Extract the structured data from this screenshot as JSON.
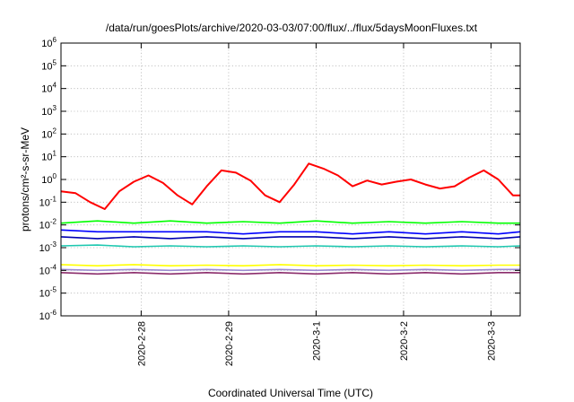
{
  "chart_data": {
    "type": "line",
    "title": "/data/run/goesPlots/archive/2020-03-03/07:00/flux/../flux/5daysMoonFluxes.txt",
    "xlabel": "Coordinated Universal Time (UTC)",
    "ylabel": "protons/cm²-s-sr-MeV",
    "y_scale": "log",
    "ylim": [
      1e-06,
      1000000.0
    ],
    "y_ticks": [
      {
        "value": 1e-06,
        "base": "10",
        "exp": "-6"
      },
      {
        "value": 1e-05,
        "base": "10",
        "exp": "-5"
      },
      {
        "value": 0.0001,
        "base": "10",
        "exp": "-4"
      },
      {
        "value": 0.001,
        "base": "10",
        "exp": "-3"
      },
      {
        "value": 0.01,
        "base": "10",
        "exp": "-2"
      },
      {
        "value": 0.1,
        "base": "10",
        "exp": "-1"
      },
      {
        "value": 1,
        "base": "10",
        "exp": "0"
      },
      {
        "value": 10,
        "base": "10",
        "exp": "1"
      },
      {
        "value": 100,
        "base": "10",
        "exp": "2"
      },
      {
        "value": 1000,
        "base": "10",
        "exp": "3"
      },
      {
        "value": 10000,
        "base": "10",
        "exp": "4"
      },
      {
        "value": 100000,
        "base": "10",
        "exp": "5"
      },
      {
        "value": 1000000,
        "base": "10",
        "exp": "6"
      }
    ],
    "xlim": [
      "2020-02-27 02:00",
      "2020-03-03 08:00"
    ],
    "x_ticks": [
      "2020-2-28",
      "2020-2-29",
      "2020-3-1",
      "2020-3-2",
      "2020-3-3"
    ],
    "x_tick_dates": [
      "2020-02-28",
      "2020-02-29",
      "2020-03-01",
      "2020-03-02",
      "2020-03-03"
    ],
    "grid": true,
    "legend": "none",
    "series": [
      {
        "color": "#ff0000",
        "x": [
          "2020-02-27 02:00",
          "2020-02-27 06:00",
          "2020-02-27 10:00",
          "2020-02-27 14:00",
          "2020-02-27 18:00",
          "2020-02-27 22:00",
          "2020-02-28 02:00",
          "2020-02-28 06:00",
          "2020-02-28 10:00",
          "2020-02-28 14:00",
          "2020-02-28 18:00",
          "2020-02-28 22:00",
          "2020-02-29 02:00",
          "2020-02-29 06:00",
          "2020-02-29 10:00",
          "2020-02-29 14:00",
          "2020-02-29 18:00",
          "2020-02-29 22:00",
          "2020-03-01 02:00",
          "2020-03-01 06:00",
          "2020-03-01 10:00",
          "2020-03-01 14:00",
          "2020-03-01 18:00",
          "2020-03-01 22:00",
          "2020-03-02 02:00",
          "2020-03-02 06:00",
          "2020-03-02 10:00",
          "2020-03-02 14:00",
          "2020-03-02 18:00",
          "2020-03-02 22:00",
          "2020-03-03 02:00",
          "2020-03-03 06:00",
          "2020-03-03 08:00"
        ],
        "values": [
          0.3,
          0.25,
          0.1,
          0.05,
          0.3,
          0.8,
          1.5,
          0.7,
          0.2,
          0.08,
          0.5,
          2.5,
          2.0,
          0.9,
          0.2,
          0.1,
          0.6,
          5.0,
          3.0,
          1.5,
          0.5,
          0.9,
          0.6,
          0.8,
          1.0,
          0.6,
          0.4,
          0.5,
          1.2,
          2.5,
          1.0,
          0.2,
          0.2
        ]
      },
      {
        "color": "#00ff00",
        "x": [
          "2020-02-27 02:00",
          "2020-02-27 12:00",
          "2020-02-27 22:00",
          "2020-02-28 08:00",
          "2020-02-28 18:00",
          "2020-02-29 04:00",
          "2020-02-29 14:00",
          "2020-03-01 00:00",
          "2020-03-01 10:00",
          "2020-03-01 20:00",
          "2020-03-02 06:00",
          "2020-03-02 16:00",
          "2020-03-03 02:00",
          "2020-03-03 08:00"
        ],
        "values": [
          0.012,
          0.015,
          0.012,
          0.015,
          0.012,
          0.014,
          0.012,
          0.015,
          0.012,
          0.014,
          0.012,
          0.014,
          0.012,
          0.012
        ]
      },
      {
        "color": "#0000ff",
        "x": [
          "2020-02-27 02:00",
          "2020-02-27 12:00",
          "2020-02-27 22:00",
          "2020-02-28 08:00",
          "2020-02-28 18:00",
          "2020-02-29 04:00",
          "2020-02-29 14:00",
          "2020-03-01 00:00",
          "2020-03-01 10:00",
          "2020-03-01 20:00",
          "2020-03-02 06:00",
          "2020-03-02 16:00",
          "2020-03-03 02:00",
          "2020-03-03 08:00"
        ],
        "values": [
          0.006,
          0.005,
          0.005,
          0.005,
          0.005,
          0.004,
          0.005,
          0.005,
          0.004,
          0.005,
          0.004,
          0.005,
          0.004,
          0.005
        ]
      },
      {
        "color": "#0000b0",
        "x": [
          "2020-02-27 02:00",
          "2020-02-27 12:00",
          "2020-02-27 22:00",
          "2020-02-28 08:00",
          "2020-02-28 18:00",
          "2020-02-29 04:00",
          "2020-02-29 14:00",
          "2020-03-01 00:00",
          "2020-03-01 10:00",
          "2020-03-01 20:00",
          "2020-03-02 06:00",
          "2020-03-02 16:00",
          "2020-03-03 02:00",
          "2020-03-03 08:00"
        ],
        "values": [
          0.003,
          0.0025,
          0.003,
          0.0025,
          0.003,
          0.0025,
          0.003,
          0.003,
          0.0025,
          0.003,
          0.0025,
          0.003,
          0.0025,
          0.003
        ]
      },
      {
        "color": "#1ec8b0",
        "x": [
          "2020-02-27 02:00",
          "2020-02-27 12:00",
          "2020-02-27 22:00",
          "2020-02-28 08:00",
          "2020-02-28 18:00",
          "2020-02-29 04:00",
          "2020-02-29 14:00",
          "2020-03-01 00:00",
          "2020-03-01 10:00",
          "2020-03-01 20:00",
          "2020-03-02 06:00",
          "2020-03-02 16:00",
          "2020-03-03 02:00",
          "2020-03-03 08:00"
        ],
        "values": [
          0.0012,
          0.0013,
          0.0011,
          0.0012,
          0.0011,
          0.0012,
          0.0011,
          0.0012,
          0.0011,
          0.0012,
          0.0011,
          0.0012,
          0.0011,
          0.0012
        ]
      },
      {
        "color": "#ffff00",
        "x": [
          "2020-02-27 02:00",
          "2020-02-27 12:00",
          "2020-02-27 22:00",
          "2020-02-28 08:00",
          "2020-02-28 18:00",
          "2020-02-29 04:00",
          "2020-02-29 14:00",
          "2020-03-01 00:00",
          "2020-03-01 10:00",
          "2020-03-01 20:00",
          "2020-03-02 06:00",
          "2020-03-02 16:00",
          "2020-03-03 02:00",
          "2020-03-03 08:00"
        ],
        "values": [
          0.00018,
          0.00016,
          0.00018,
          0.00016,
          0.00017,
          0.00016,
          0.00018,
          0.00016,
          0.00017,
          0.00016,
          0.00017,
          0.00016,
          0.00017,
          0.00017
        ]
      },
      {
        "color": "#9b8bd0",
        "x": [
          "2020-02-27 02:00",
          "2020-02-27 12:00",
          "2020-02-27 22:00",
          "2020-02-28 08:00",
          "2020-02-28 18:00",
          "2020-02-29 04:00",
          "2020-02-29 14:00",
          "2020-03-01 00:00",
          "2020-03-01 10:00",
          "2020-03-01 20:00",
          "2020-03-02 06:00",
          "2020-03-02 16:00",
          "2020-03-03 02:00",
          "2020-03-03 08:00"
        ],
        "values": [
          0.00011,
          0.0001,
          0.00011,
          0.0001,
          0.00011,
          0.0001,
          0.00011,
          0.0001,
          0.00011,
          0.0001,
          0.00011,
          0.0001,
          0.00011,
          0.00011
        ]
      },
      {
        "color": "#8b2c6b",
        "x": [
          "2020-02-27 02:00",
          "2020-02-27 12:00",
          "2020-02-27 22:00",
          "2020-02-28 08:00",
          "2020-02-28 18:00",
          "2020-02-29 04:00",
          "2020-02-29 14:00",
          "2020-03-01 00:00",
          "2020-03-01 10:00",
          "2020-03-01 20:00",
          "2020-03-02 06:00",
          "2020-03-02 16:00",
          "2020-03-03 02:00",
          "2020-03-03 08:00"
        ],
        "values": [
          8e-05,
          7e-05,
          8e-05,
          7e-05,
          8e-05,
          7e-05,
          8e-05,
          7e-05,
          8e-05,
          7e-05,
          8e-05,
          7e-05,
          8e-05,
          8e-05
        ]
      }
    ]
  }
}
